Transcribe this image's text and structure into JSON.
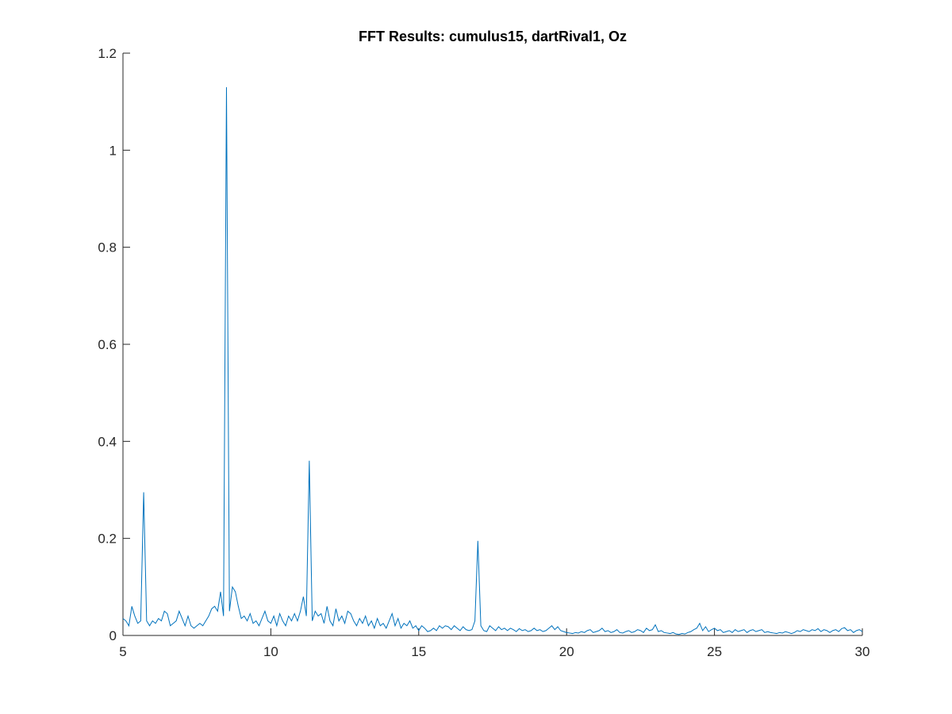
{
  "chart_data": {
    "type": "line",
    "title": "FFT Results: cumulus15, dartRival1, Oz",
    "color": "#0072bd",
    "x": [
      5,
      5.1,
      5.2,
      5.3,
      5.4,
      5.5,
      5.6,
      5.7,
      5.8,
      5.9,
      6,
      6.1,
      6.2,
      6.3,
      6.4,
      6.5,
      6.6,
      6.7,
      6.8,
      6.9,
      7,
      7.1,
      7.2,
      7.3,
      7.4,
      7.5,
      7.6,
      7.7,
      7.8,
      7.9,
      8,
      8.1,
      8.2,
      8.3,
      8.4,
      8.5,
      8.6,
      8.7,
      8.8,
      8.9,
      9,
      9.1,
      9.2,
      9.3,
      9.4,
      9.5,
      9.6,
      9.7,
      9.8,
      9.9,
      10,
      10.1,
      10.2,
      10.3,
      10.4,
      10.5,
      10.6,
      10.7,
      10.8,
      10.9,
      11,
      11.1,
      11.2,
      11.3,
      11.4,
      11.5,
      11.6,
      11.7,
      11.8,
      11.9,
      12,
      12.1,
      12.2,
      12.3,
      12.4,
      12.5,
      12.6,
      12.7,
      12.8,
      12.9,
      13,
      13.1,
      13.2,
      13.3,
      13.4,
      13.5,
      13.6,
      13.7,
      13.8,
      13.9,
      14,
      14.1,
      14.2,
      14.3,
      14.4,
      14.5,
      14.6,
      14.7,
      14.8,
      14.9,
      15,
      15.1,
      15.2,
      15.3,
      15.4,
      15.5,
      15.6,
      15.7,
      15.8,
      15.9,
      16,
      16.1,
      16.2,
      16.3,
      16.4,
      16.5,
      16.6,
      16.7,
      16.8,
      16.9,
      17,
      17.1,
      17.2,
      17.3,
      17.4,
      17.5,
      17.6,
      17.7,
      17.8,
      17.9,
      18,
      18.1,
      18.2,
      18.3,
      18.4,
      18.5,
      18.6,
      18.7,
      18.8,
      18.9,
      19,
      19.1,
      19.2,
      19.3,
      19.4,
      19.5,
      19.6,
      19.7,
      19.8,
      19.9,
      20,
      20.1,
      20.2,
      20.3,
      20.4,
      20.5,
      20.6,
      20.7,
      20.8,
      20.9,
      21,
      21.1,
      21.2,
      21.3,
      21.4,
      21.5,
      21.6,
      21.7,
      21.8,
      21.9,
      22,
      22.1,
      22.2,
      22.3,
      22.4,
      22.5,
      22.6,
      22.7,
      22.8,
      22.9,
      23,
      23.1,
      23.2,
      23.3,
      23.4,
      23.5,
      23.6,
      23.7,
      23.8,
      23.9,
      24,
      24.1,
      24.2,
      24.3,
      24.4,
      24.5,
      24.6,
      24.7,
      24.8,
      24.9,
      25,
      25.1,
      25.2,
      25.3,
      25.4,
      25.5,
      25.6,
      25.7,
      25.8,
      25.9,
      26,
      26.1,
      26.2,
      26.3,
      26.4,
      26.5,
      26.6,
      26.7,
      26.8,
      26.9,
      27,
      27.1,
      27.2,
      27.3,
      27.4,
      27.5,
      27.6,
      27.7,
      27.8,
      27.9,
      28,
      28.1,
      28.2,
      28.3,
      28.4,
      28.5,
      28.6,
      28.7,
      28.8,
      28.9,
      29,
      29.1,
      29.2,
      29.3,
      29.4,
      29.5,
      29.6,
      29.7,
      29.8,
      29.9,
      30
    ],
    "values": [
      0.035,
      0.03,
      0.02,
      0.06,
      0.04,
      0.025,
      0.03,
      0.295,
      0.03,
      0.02,
      0.03,
      0.025,
      0.035,
      0.03,
      0.05,
      0.045,
      0.02,
      0.025,
      0.03,
      0.05,
      0.035,
      0.02,
      0.04,
      0.02,
      0.015,
      0.02,
      0.025,
      0.02,
      0.03,
      0.04,
      0.055,
      0.06,
      0.05,
      0.09,
      0.04,
      1.13,
      0.05,
      0.1,
      0.09,
      0.06,
      0.035,
      0.04,
      0.03,
      0.045,
      0.025,
      0.03,
      0.02,
      0.035,
      0.05,
      0.03,
      0.025,
      0.04,
      0.02,
      0.045,
      0.03,
      0.02,
      0.04,
      0.03,
      0.045,
      0.03,
      0.05,
      0.08,
      0.04,
      0.36,
      0.03,
      0.05,
      0.04,
      0.045,
      0.025,
      0.06,
      0.03,
      0.02,
      0.055,
      0.03,
      0.04,
      0.025,
      0.05,
      0.045,
      0.03,
      0.02,
      0.035,
      0.025,
      0.04,
      0.02,
      0.03,
      0.015,
      0.035,
      0.02,
      0.025,
      0.015,
      0.03,
      0.045,
      0.02,
      0.035,
      0.015,
      0.025,
      0.02,
      0.03,
      0.015,
      0.02,
      0.01,
      0.02,
      0.015,
      0.008,
      0.01,
      0.015,
      0.01,
      0.02,
      0.015,
      0.02,
      0.018,
      0.012,
      0.02,
      0.015,
      0.01,
      0.018,
      0.012,
      0.01,
      0.012,
      0.03,
      0.195,
      0.02,
      0.01,
      0.008,
      0.02,
      0.015,
      0.01,
      0.018,
      0.012,
      0.015,
      0.01,
      0.015,
      0.012,
      0.008,
      0.014,
      0.01,
      0.012,
      0.008,
      0.01,
      0.015,
      0.01,
      0.012,
      0.008,
      0.01,
      0.015,
      0.02,
      0.012,
      0.018,
      0.01,
      0.008,
      0.006,
      0.005,
      0.004,
      0.006,
      0.005,
      0.008,
      0.006,
      0.01,
      0.012,
      0.006,
      0.008,
      0.01,
      0.015,
      0.008,
      0.01,
      0.006,
      0.008,
      0.012,
      0.006,
      0.005,
      0.008,
      0.01,
      0.006,
      0.008,
      0.012,
      0.01,
      0.006,
      0.015,
      0.01,
      0.012,
      0.022,
      0.008,
      0.01,
      0.006,
      0.005,
      0.004,
      0.006,
      0.003,
      0.002,
      0.004,
      0.003,
      0.006,
      0.008,
      0.012,
      0.015,
      0.025,
      0.01,
      0.018,
      0.008,
      0.012,
      0.015,
      0.01,
      0.012,
      0.006,
      0.008,
      0.01,
      0.006,
      0.012,
      0.008,
      0.01,
      0.012,
      0.006,
      0.01,
      0.012,
      0.008,
      0.01,
      0.012,
      0.006,
      0.008,
      0.006,
      0.005,
      0.004,
      0.006,
      0.005,
      0.008,
      0.006,
      0.004,
      0.006,
      0.01,
      0.008,
      0.012,
      0.01,
      0.008,
      0.012,
      0.01,
      0.014,
      0.008,
      0.012,
      0.01,
      0.006,
      0.01,
      0.012,
      0.008,
      0.014,
      0.016,
      0.01,
      0.012,
      0.006,
      0.01,
      0.012,
      0.008
    ],
    "xlim": [
      5,
      30
    ],
    "xticks": [
      5,
      10,
      15,
      20,
      25,
      30
    ],
    "ylim": [
      0,
      1.2
    ],
    "yticks": [
      0,
      0.2,
      0.4,
      0.6,
      0.8,
      1,
      1.2
    ]
  }
}
